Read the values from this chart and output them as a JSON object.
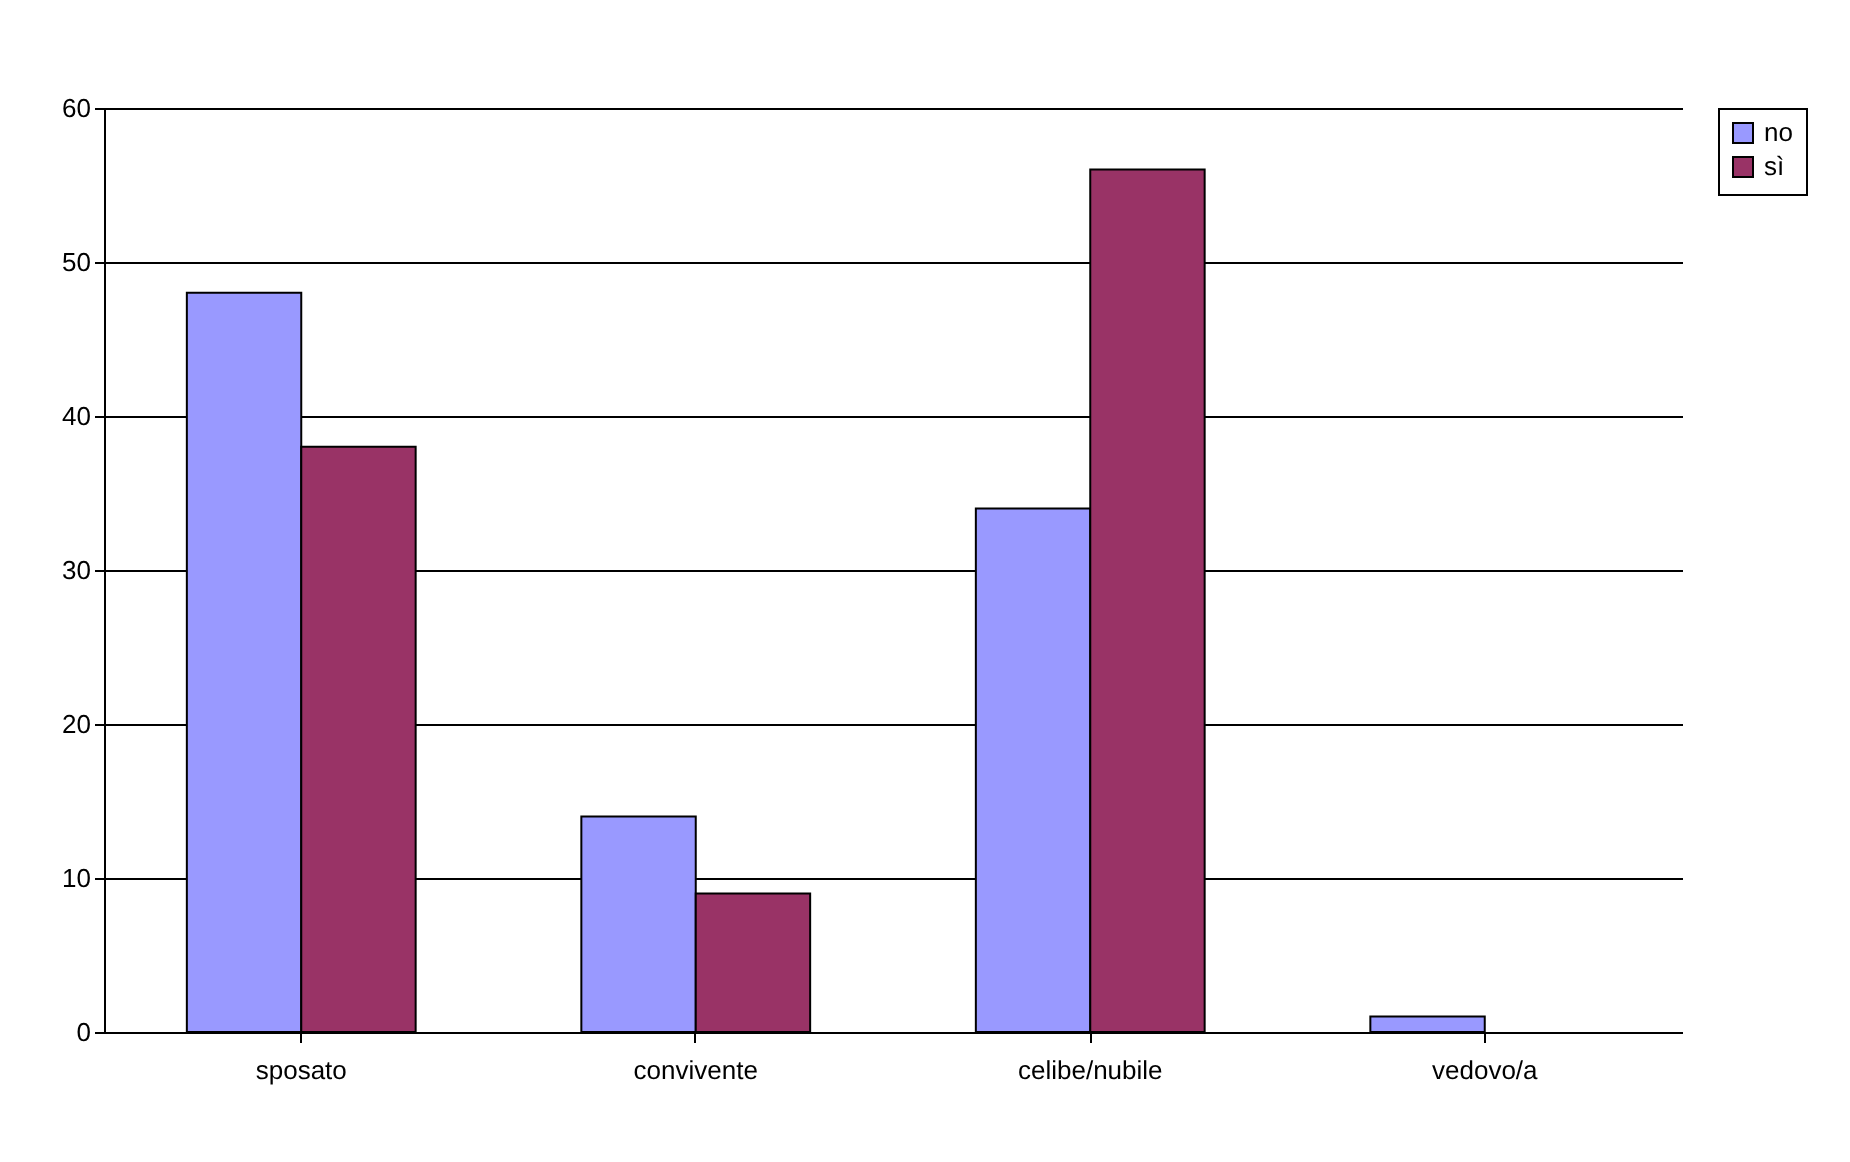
{
  "chart_data": {
    "type": "bar",
    "categories": [
      "sposato",
      "convivente",
      "celibe/nubile",
      "vedovo/a"
    ],
    "series": [
      {
        "name": "no",
        "color": "#9999ff",
        "values": [
          48,
          14,
          34,
          1
        ]
      },
      {
        "name": "sì",
        "color": "#993366",
        "values": [
          38,
          9,
          56,
          null
        ]
      }
    ],
    "ylim": [
      0,
      60
    ],
    "yticks": [
      0,
      10,
      20,
      30,
      40,
      50,
      60
    ],
    "grid": "y",
    "legend": "right"
  }
}
